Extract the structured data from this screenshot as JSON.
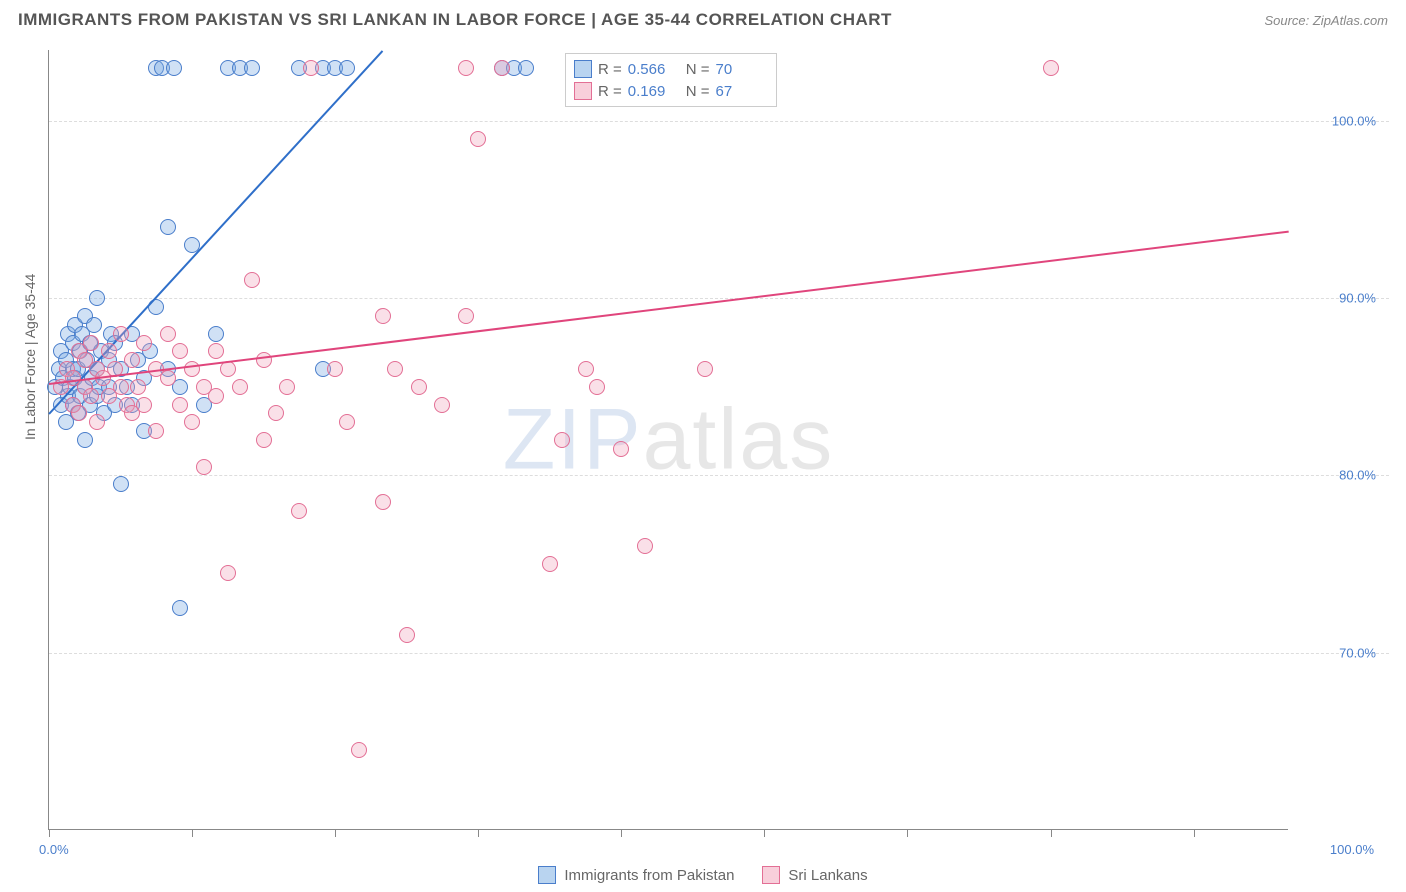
{
  "header": {
    "title": "IMMIGRANTS FROM PAKISTAN VS SRI LANKAN IN LABOR FORCE | AGE 35-44 CORRELATION CHART",
    "source": "Source: ZipAtlas.com"
  },
  "axis": {
    "y_title": "In Labor Force | Age 35-44",
    "x_min_label": "0.0%",
    "x_max_label": "100.0%",
    "y_ticks": [
      {
        "v": 70,
        "label": "70.0%"
      },
      {
        "v": 80,
        "label": "80.0%"
      },
      {
        "v": 90,
        "label": "90.0%"
      },
      {
        "v": 100,
        "label": "100.0%"
      }
    ],
    "x_tick_positions": [
      0,
      12,
      24,
      36,
      48,
      60,
      72,
      84,
      96
    ],
    "xlim": [
      0,
      104
    ],
    "ylim": [
      60,
      104
    ]
  },
  "legend_top": {
    "rows": [
      {
        "swatch_fill": "#b9d4f0",
        "swatch_border": "#4a7ecb",
        "r_label": "R =",
        "r_value": "0.566",
        "n_label": "N =",
        "n_value": "70"
      },
      {
        "swatch_fill": "#f8cfdb",
        "swatch_border": "#e36f95",
        "r_label": "R =",
        "r_value": "0.169",
        "n_label": "N =",
        "n_value": "67"
      }
    ]
  },
  "legend_bottom": {
    "items": [
      {
        "swatch_fill": "#b9d4f0",
        "swatch_border": "#4a7ecb",
        "label": "Immigrants from Pakistan"
      },
      {
        "swatch_fill": "#f8cfdb",
        "swatch_border": "#e36f95",
        "label": "Sri Lankans"
      }
    ]
  },
  "watermark": {
    "z": "ZIP",
    "rest": "atlas"
  },
  "series": [
    {
      "name": "pakistan",
      "color_fill": "rgba(120,170,225,0.35)",
      "color_stroke": "#4a7ecb",
      "marker_radius": 8,
      "trend": {
        "x1": 0,
        "y1": 83.5,
        "x2": 28,
        "y2": 104,
        "color": "#2f6fc9",
        "width": 2
      },
      "points": [
        [
          0.5,
          85
        ],
        [
          0.8,
          86
        ],
        [
          1,
          84
        ],
        [
          1,
          87
        ],
        [
          1.2,
          85.5
        ],
        [
          1.4,
          83
        ],
        [
          1.4,
          86.5
        ],
        [
          1.6,
          88
        ],
        [
          1.6,
          84.5
        ],
        [
          1.8,
          85
        ],
        [
          2,
          86
        ],
        [
          2,
          84
        ],
        [
          2,
          87.5
        ],
        [
          2.2,
          85.5
        ],
        [
          2.2,
          88.5
        ],
        [
          2.4,
          83.5
        ],
        [
          2.4,
          86
        ],
        [
          2.6,
          87
        ],
        [
          2.6,
          84.5
        ],
        [
          2.8,
          88
        ],
        [
          3,
          85
        ],
        [
          3,
          82
        ],
        [
          3,
          89
        ],
        [
          3.2,
          86.5
        ],
        [
          3.4,
          84
        ],
        [
          3.4,
          87.5
        ],
        [
          3.6,
          85.5
        ],
        [
          3.8,
          88.5
        ],
        [
          4,
          86
        ],
        [
          4,
          84.5
        ],
        [
          4,
          90
        ],
        [
          4.2,
          85
        ],
        [
          4.4,
          87
        ],
        [
          4.6,
          83.5
        ],
        [
          5,
          86.5
        ],
        [
          5,
          85
        ],
        [
          5.2,
          88
        ],
        [
          5.5,
          84
        ],
        [
          5.5,
          87.5
        ],
        [
          6,
          86
        ],
        [
          6,
          79.5
        ],
        [
          6.5,
          85
        ],
        [
          7,
          88
        ],
        [
          7,
          84
        ],
        [
          7.5,
          86.5
        ],
        [
          8,
          85.5
        ],
        [
          8,
          82.5
        ],
        [
          8.5,
          87
        ],
        [
          9,
          89.5
        ],
        [
          9,
          103
        ],
        [
          9.5,
          103
        ],
        [
          10,
          86
        ],
        [
          10,
          94
        ],
        [
          10.5,
          103
        ],
        [
          11,
          85
        ],
        [
          11,
          72.5
        ],
        [
          12,
          93
        ],
        [
          13,
          84
        ],
        [
          14,
          88
        ],
        [
          15,
          103
        ],
        [
          16,
          103
        ],
        [
          17,
          103
        ],
        [
          21,
          103
        ],
        [
          23,
          86
        ],
        [
          23,
          103
        ],
        [
          24,
          103
        ],
        [
          25,
          103
        ],
        [
          38,
          103
        ],
        [
          39,
          103
        ],
        [
          40,
          103
        ]
      ]
    },
    {
      "name": "srilanka",
      "color_fill": "rgba(240,160,185,0.32)",
      "color_stroke": "#e36f95",
      "marker_radius": 8,
      "trend": {
        "x1": 0,
        "y1": 85.2,
        "x2": 104,
        "y2": 93.8,
        "color": "#e0457c",
        "width": 2
      },
      "points": [
        [
          1,
          85
        ],
        [
          1.5,
          86
        ],
        [
          2,
          84
        ],
        [
          2,
          85.5
        ],
        [
          2.5,
          87
        ],
        [
          2.5,
          83.5
        ],
        [
          3,
          86.5
        ],
        [
          3,
          85
        ],
        [
          3.5,
          84.5
        ],
        [
          3.5,
          87.5
        ],
        [
          4,
          86
        ],
        [
          4,
          83
        ],
        [
          4.5,
          85.5
        ],
        [
          5,
          87
        ],
        [
          5,
          84.5
        ],
        [
          5.5,
          86
        ],
        [
          6,
          85
        ],
        [
          6,
          88
        ],
        [
          6.5,
          84
        ],
        [
          7,
          86.5
        ],
        [
          7,
          83.5
        ],
        [
          7.5,
          85
        ],
        [
          8,
          87.5
        ],
        [
          8,
          84
        ],
        [
          9,
          86
        ],
        [
          9,
          82.5
        ],
        [
          10,
          85.5
        ],
        [
          10,
          88
        ],
        [
          11,
          87
        ],
        [
          11,
          84
        ],
        [
          12,
          86
        ],
        [
          12,
          83
        ],
        [
          13,
          85
        ],
        [
          13,
          80.5
        ],
        [
          14,
          87
        ],
        [
          14,
          84.5
        ],
        [
          15,
          86
        ],
        [
          15,
          74.5
        ],
        [
          16,
          85
        ],
        [
          17,
          91
        ],
        [
          18,
          82
        ],
        [
          18,
          86.5
        ],
        [
          19,
          83.5
        ],
        [
          20,
          85
        ],
        [
          21,
          78
        ],
        [
          22,
          103
        ],
        [
          24,
          86
        ],
        [
          25,
          83
        ],
        [
          26,
          64.5
        ],
        [
          28,
          89
        ],
        [
          28,
          78.5
        ],
        [
          29,
          86
        ],
        [
          30,
          71
        ],
        [
          31,
          85
        ],
        [
          33,
          84
        ],
        [
          35,
          89
        ],
        [
          35,
          103
        ],
        [
          36,
          99
        ],
        [
          38,
          103
        ],
        [
          42,
          75
        ],
        [
          43,
          82
        ],
        [
          45,
          86
        ],
        [
          46,
          85
        ],
        [
          48,
          81.5
        ],
        [
          50,
          76
        ],
        [
          55,
          86
        ],
        [
          84,
          103
        ]
      ]
    }
  ],
  "styling": {
    "background": "#ffffff",
    "grid_color": "#dddddd",
    "axis_color": "#888888",
    "title_color": "#555555",
    "label_color": "#4a7ecb",
    "title_fontsize": 17,
    "label_fontsize": 13
  }
}
